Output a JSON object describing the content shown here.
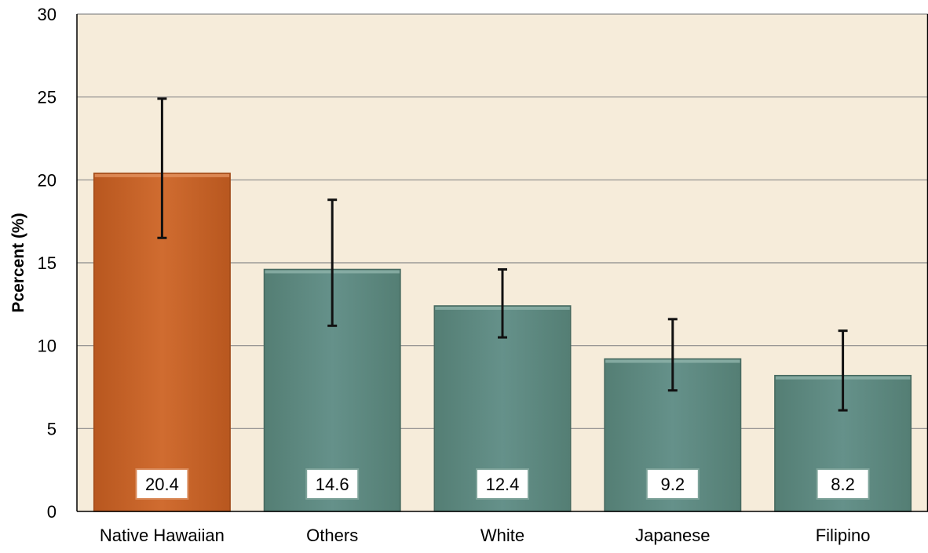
{
  "chart_data": {
    "type": "bar",
    "title": "",
    "xlabel": "",
    "ylabel": "Pcercent (%)",
    "ylim": [
      0,
      30
    ],
    "yticks": [
      0,
      5,
      10,
      15,
      20,
      25,
      30
    ],
    "grid": true,
    "categories": [
      "Native Hawaiian",
      "Others",
      "White",
      "Japanese",
      "Filipino"
    ],
    "values": [
      20.4,
      14.6,
      12.4,
      9.2,
      8.2
    ],
    "value_labels": [
      "20.4",
      "14.6",
      "12.4",
      "9.2",
      "8.2"
    ],
    "error_low": [
      16.5,
      11.2,
      10.5,
      7.3,
      6.1
    ],
    "error_high": [
      24.9,
      18.8,
      14.6,
      11.6,
      10.9
    ],
    "highlight_index": 0,
    "colors": {
      "plot_background": "#f6ecda",
      "highlight_bar": "#c8652b",
      "bar": "#5e8a80",
      "error_bar": "#111111",
      "grid": "#8a8a8a",
      "label_box": "#ffffff"
    }
  }
}
